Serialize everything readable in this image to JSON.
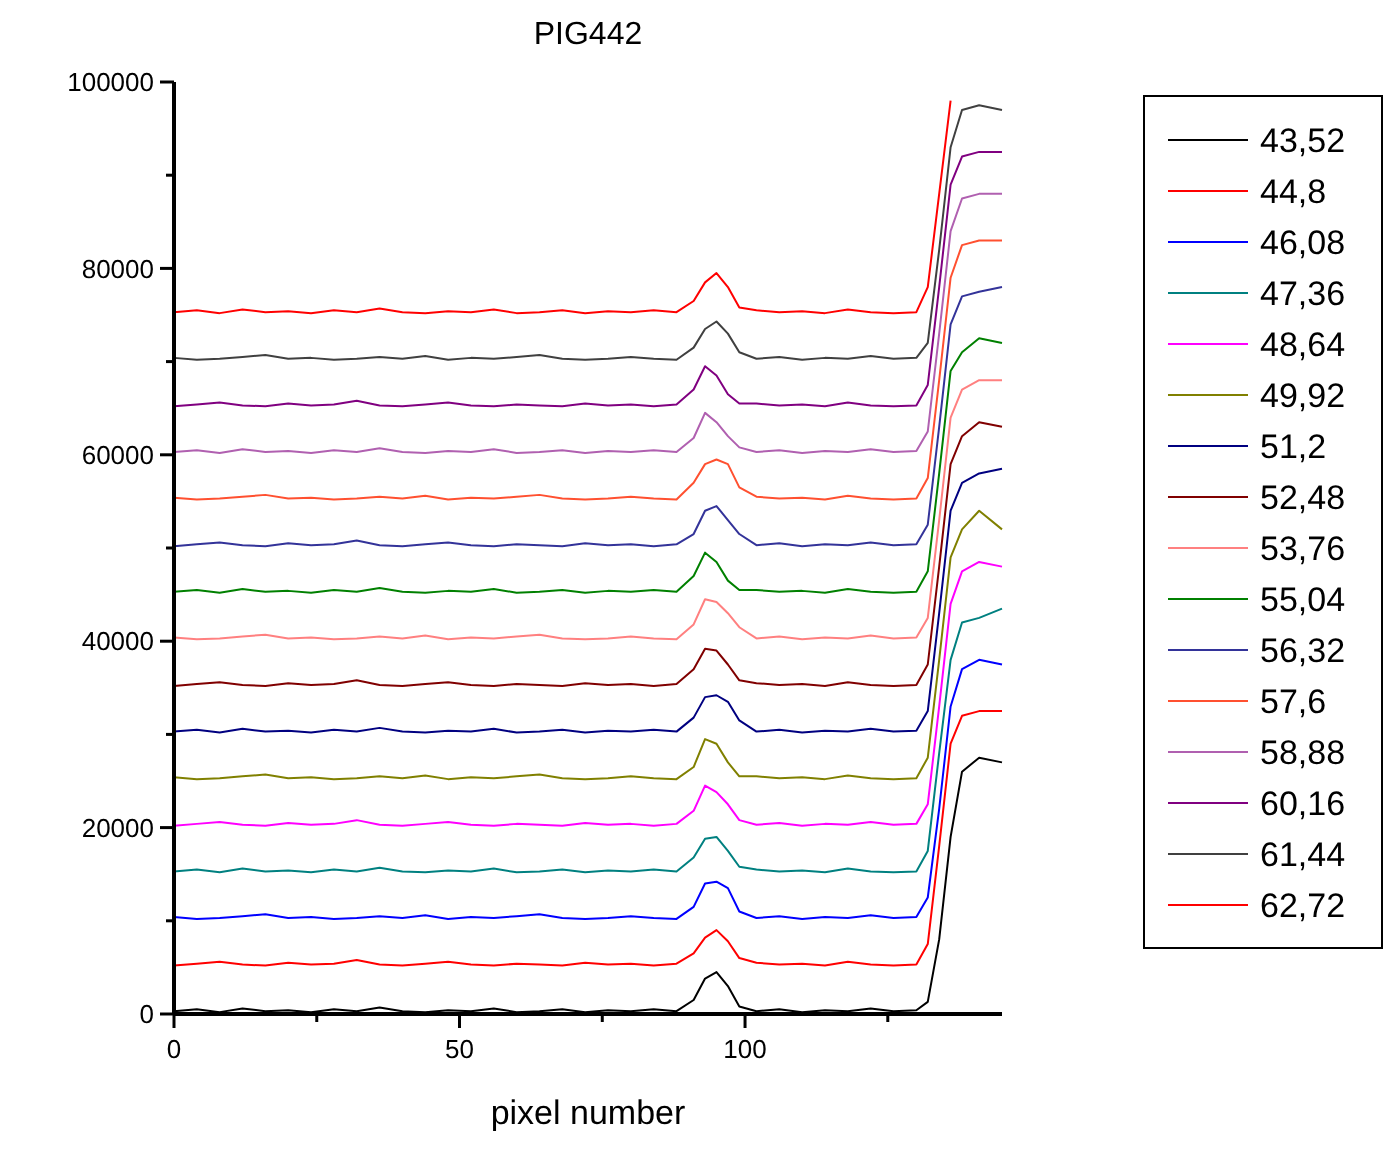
{
  "chart_data": {
    "type": "line",
    "title": "PIG442",
    "xlabel": "pixel number",
    "legend": "right",
    "x": [
      0,
      4,
      8,
      12,
      16,
      20,
      24,
      28,
      32,
      36,
      40,
      44,
      48,
      52,
      56,
      60,
      64,
      68,
      72,
      76,
      80,
      84,
      88,
      91,
      93,
      95,
      97,
      99,
      102,
      106,
      110,
      114,
      118,
      122,
      126,
      130,
      132,
      134,
      136,
      138,
      141,
      145
    ],
    "xlim": [
      0,
      145
    ],
    "xticks": [
      0,
      {
        "value": 25,
        "label": null
      },
      50,
      {
        "value": 75,
        "label": null
      },
      100,
      {
        "value": 125,
        "label": null
      }
    ],
    "ylim": [
      0,
      100000
    ],
    "yticks": [
      0,
      {
        "value": 10000,
        "label": null
      },
      20000,
      {
        "value": 30000,
        "label": null
      },
      40000,
      {
        "value": 50000,
        "label": null
      },
      60000,
      {
        "value": 70000,
        "label": null
      },
      80000,
      {
        "value": 90000,
        "label": null
      },
      100000
    ],
    "series": [
      {
        "name": "43,52",
        "color": "#000000",
        "values": [
          300,
          500,
          200,
          600,
          300,
          400,
          200,
          500,
          300,
          700,
          300,
          200,
          400,
          300,
          600,
          200,
          300,
          500,
          200,
          400,
          300,
          500,
          300,
          1500,
          3800,
          4500,
          3000,
          800,
          300,
          500,
          200,
          400,
          300,
          600,
          300,
          400,
          1300,
          8000,
          19000,
          26000,
          27500,
          27000
        ]
      },
      {
        "name": "44,8",
        "color": "#ff0000",
        "values": [
          5200,
          5400,
          5600,
          5300,
          5200,
          5500,
          5300,
          5400,
          5800,
          5300,
          5200,
          5400,
          5600,
          5300,
          5200,
          5400,
          5300,
          5200,
          5500,
          5300,
          5400,
          5200,
          5400,
          6500,
          8200,
          9000,
          7800,
          6000,
          5500,
          5300,
          5400,
          5200,
          5600,
          5300,
          5200,
          5300,
          7500,
          18000,
          29000,
          32000,
          32500,
          32500
        ]
      },
      {
        "name": "46,08",
        "color": "#0000ff",
        "values": [
          10400,
          10200,
          10300,
          10500,
          10700,
          10300,
          10400,
          10200,
          10300,
          10500,
          10300,
          10600,
          10200,
          10400,
          10300,
          10500,
          10700,
          10300,
          10200,
          10300,
          10500,
          10300,
          10200,
          11500,
          14000,
          14200,
          13500,
          11000,
          10300,
          10500,
          10200,
          10400,
          10300,
          10600,
          10300,
          10400,
          12500,
          22000,
          33000,
          37000,
          38000,
          37500
        ]
      },
      {
        "name": "47,36",
        "color": "#008080",
        "values": [
          15300,
          15500,
          15200,
          15600,
          15300,
          15400,
          15200,
          15500,
          15300,
          15700,
          15300,
          15200,
          15400,
          15300,
          15600,
          15200,
          15300,
          15500,
          15200,
          15400,
          15300,
          15500,
          15300,
          16800,
          18800,
          19000,
          17500,
          15800,
          15500,
          15300,
          15400,
          15200,
          15600,
          15300,
          15200,
          15300,
          17500,
          28000,
          38000,
          42000,
          42500,
          43500
        ]
      },
      {
        "name": "48,64",
        "color": "#ff00ff",
        "values": [
          20200,
          20400,
          20600,
          20300,
          20200,
          20500,
          20300,
          20400,
          20800,
          20300,
          20200,
          20400,
          20600,
          20300,
          20200,
          20400,
          20300,
          20200,
          20500,
          20300,
          20400,
          20200,
          20400,
          21800,
          24500,
          23800,
          22500,
          20800,
          20300,
          20500,
          20200,
          20400,
          20300,
          20600,
          20300,
          20400,
          22500,
          33000,
          44000,
          47500,
          48500,
          48000
        ]
      },
      {
        "name": "49,92",
        "color": "#808000",
        "values": [
          25400,
          25200,
          25300,
          25500,
          25700,
          25300,
          25400,
          25200,
          25300,
          25500,
          25300,
          25600,
          25200,
          25400,
          25300,
          25500,
          25700,
          25300,
          25200,
          25300,
          25500,
          25300,
          25200,
          26500,
          29500,
          29000,
          27000,
          25500,
          25500,
          25300,
          25400,
          25200,
          25600,
          25300,
          25200,
          25300,
          27500,
          38000,
          49000,
          52000,
          54000,
          52000
        ]
      },
      {
        "name": "51,2",
        "color": "#000080",
        "values": [
          30300,
          30500,
          30200,
          30600,
          30300,
          30400,
          30200,
          30500,
          30300,
          30700,
          30300,
          30200,
          30400,
          30300,
          30600,
          30200,
          30300,
          30500,
          30200,
          30400,
          30300,
          30500,
          30300,
          31800,
          34000,
          34200,
          33500,
          31500,
          30300,
          30500,
          30200,
          30400,
          30300,
          30600,
          30300,
          30400,
          32500,
          43000,
          54000,
          57000,
          58000,
          58500
        ]
      },
      {
        "name": "52,48",
        "color": "#800000",
        "values": [
          35200,
          35400,
          35600,
          35300,
          35200,
          35500,
          35300,
          35400,
          35800,
          35300,
          35200,
          35400,
          35600,
          35300,
          35200,
          35400,
          35300,
          35200,
          35500,
          35300,
          35400,
          35200,
          35400,
          37000,
          39200,
          39000,
          37500,
          35800,
          35500,
          35300,
          35400,
          35200,
          35600,
          35300,
          35200,
          35300,
          37500,
          48000,
          59000,
          62000,
          63500,
          63000
        ]
      },
      {
        "name": "53,76",
        "color": "#ff8080",
        "values": [
          40400,
          40200,
          40300,
          40500,
          40700,
          40300,
          40400,
          40200,
          40300,
          40500,
          40300,
          40600,
          40200,
          40400,
          40300,
          40500,
          40700,
          40300,
          40200,
          40300,
          40500,
          40300,
          40200,
          41800,
          44500,
          44200,
          43000,
          41500,
          40300,
          40500,
          40200,
          40400,
          40300,
          40600,
          40300,
          40400,
          42500,
          53000,
          64000,
          67000,
          68000,
          68000
        ]
      },
      {
        "name": "55,04",
        "color": "#008000",
        "values": [
          45300,
          45500,
          45200,
          45600,
          45300,
          45400,
          45200,
          45500,
          45300,
          45700,
          45300,
          45200,
          45400,
          45300,
          45600,
          45200,
          45300,
          45500,
          45200,
          45400,
          45300,
          45500,
          45300,
          47000,
          49500,
          48500,
          46500,
          45500,
          45500,
          45300,
          45400,
          45200,
          45600,
          45300,
          45200,
          45300,
          47500,
          58000,
          69000,
          71000,
          72500,
          72000
        ]
      },
      {
        "name": "56,32",
        "color": "#333399",
        "values": [
          50200,
          50400,
          50600,
          50300,
          50200,
          50500,
          50300,
          50400,
          50800,
          50300,
          50200,
          50400,
          50600,
          50300,
          50200,
          50400,
          50300,
          50200,
          50500,
          50300,
          50400,
          50200,
          50400,
          51500,
          54000,
          54500,
          53000,
          51500,
          50300,
          50500,
          50200,
          50400,
          50300,
          50600,
          50300,
          50400,
          52500,
          63000,
          74000,
          77000,
          77500,
          78000
        ]
      },
      {
        "name": "57,6",
        "color": "#ff5030",
        "values": [
          55400,
          55200,
          55300,
          55500,
          55700,
          55300,
          55400,
          55200,
          55300,
          55500,
          55300,
          55600,
          55200,
          55400,
          55300,
          55500,
          55700,
          55300,
          55200,
          55300,
          55500,
          55300,
          55200,
          57000,
          59000,
          59500,
          59000,
          56500,
          55500,
          55300,
          55400,
          55200,
          55600,
          55300,
          55200,
          55300,
          57500,
          68000,
          79000,
          82500,
          83000,
          83000
        ]
      },
      {
        "name": "58,88",
        "color": "#b060b0",
        "values": [
          60300,
          60500,
          60200,
          60600,
          60300,
          60400,
          60200,
          60500,
          60300,
          60700,
          60300,
          60200,
          60400,
          60300,
          60600,
          60200,
          60300,
          60500,
          60200,
          60400,
          60300,
          60500,
          60300,
          61800,
          64500,
          63500,
          62000,
          60800,
          60300,
          60500,
          60200,
          60400,
          60300,
          60600,
          60300,
          60400,
          62500,
          73000,
          84000,
          87500,
          88000,
          88000
        ]
      },
      {
        "name": "60,16",
        "color": "#800080",
        "values": [
          65200,
          65400,
          65600,
          65300,
          65200,
          65500,
          65300,
          65400,
          65800,
          65300,
          65200,
          65400,
          65600,
          65300,
          65200,
          65400,
          65300,
          65200,
          65500,
          65300,
          65400,
          65200,
          65400,
          67000,
          69500,
          68500,
          66500,
          65500,
          65500,
          65300,
          65400,
          65200,
          65600,
          65300,
          65200,
          65300,
          67500,
          78000,
          89000,
          92000,
          92500,
          92500
        ]
      },
      {
        "name": "61,44",
        "color": "#404040",
        "values": [
          70400,
          70200,
          70300,
          70500,
          70700,
          70300,
          70400,
          70200,
          70300,
          70500,
          70300,
          70600,
          70200,
          70400,
          70300,
          70500,
          70700,
          70300,
          70200,
          70300,
          70500,
          70300,
          70200,
          71500,
          73500,
          74300,
          73000,
          71000,
          70300,
          70500,
          70200,
          70400,
          70300,
          70600,
          70300,
          70400,
          72000,
          82000,
          93000,
          97000,
          97500,
          97000
        ]
      },
      {
        "name": "62,72",
        "color": "#ff0000",
        "values": [
          75300,
          75500,
          75200,
          75600,
          75300,
          75400,
          75200,
          75500,
          75300,
          75700,
          75300,
          75200,
          75400,
          75300,
          75600,
          75200,
          75300,
          75500,
          75200,
          75400,
          75300,
          75500,
          75300,
          76500,
          78500,
          79500,
          78000,
          75800,
          75500,
          75300,
          75400,
          75200,
          75600,
          75300,
          75200,
          75300,
          78000,
          88000,
          98000,
          null,
          null,
          null
        ]
      }
    ]
  }
}
